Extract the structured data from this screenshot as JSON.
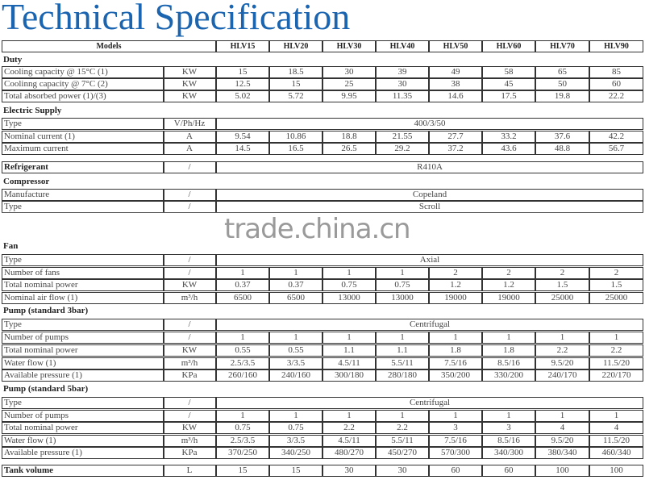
{
  "title": "Technical Specification",
  "watermark": "trade.china.cn",
  "header": {
    "label": "Models",
    "models": [
      "HLV15",
      "HLV20",
      "HLV30",
      "HLV40",
      "HLV50",
      "HLV60",
      "HLV70",
      "HLV90"
    ]
  },
  "sections": [
    {
      "name": "Duty",
      "rows": [
        {
          "label": "Cooling capacity @ 15°C (1)",
          "unit": "KW",
          "values": [
            "15",
            "18.5",
            "30",
            "39",
            "49",
            "58",
            "65",
            "85"
          ]
        },
        {
          "label": "Coolinng capacity @ 7°C (2)",
          "unit": "KW",
          "values": [
            "12.5",
            "15",
            "25",
            "30",
            "38",
            "45",
            "50",
            "60"
          ]
        },
        {
          "label": "Total absorbed power  (1)/(3)",
          "unit": "KW",
          "values": [
            "5.02",
            "5.72",
            "9.95",
            "11.35",
            "14.6",
            "17.5",
            "19.8",
            "22.2"
          ]
        }
      ]
    },
    {
      "name": "Electric Supply",
      "rows": [
        {
          "label": "Type",
          "unit": "V/Ph/Hz",
          "span": "400/3/50"
        },
        {
          "label": "Nominal current (1)",
          "unit": "A",
          "values": [
            "9.54",
            "10.86",
            "18.8",
            "21.55",
            "27.7",
            "33.2",
            "37.6",
            "42.2"
          ]
        },
        {
          "label": "Maximum current",
          "unit": "A",
          "values": [
            "14.5",
            "16.5",
            "26.5",
            "29.2",
            "37.2",
            "43.6",
            "48.8",
            "56.7"
          ]
        }
      ]
    },
    {
      "name": "",
      "rows": [
        {
          "label": "Refrigerant",
          "unit": "/",
          "span": "R410A",
          "bold": true
        }
      ]
    },
    {
      "name": "Compressor",
      "rows": [
        {
          "label": "Manufacture",
          "unit": "/",
          "span": "Copeland"
        },
        {
          "label": "Type",
          "unit": "/",
          "span": "Scroll"
        }
      ]
    },
    {
      "name": "Fan",
      "rows": [
        {
          "label": "Type",
          "unit": "/",
          "span": "Axial"
        },
        {
          "label": "Number of fans",
          "unit": "/",
          "values": [
            "1",
            "1",
            "1",
            "1",
            "2",
            "2",
            "2",
            "2"
          ]
        },
        {
          "label": "Total nominal power",
          "unit": "KW",
          "values": [
            "0.37",
            "0.37",
            "0.75",
            "0.75",
            "1.2",
            "1.2",
            "1.5",
            "1.5"
          ]
        },
        {
          "label": "Nominal air flow (1)",
          "unit": "m³/h",
          "values": [
            "6500",
            "6500",
            "13000",
            "13000",
            "19000",
            "19000",
            "25000",
            "25000"
          ]
        }
      ]
    },
    {
      "name": "Pump (standard 3bar)",
      "rows": [
        {
          "label": "Type",
          "unit": "/",
          "span": "Centrifugal"
        },
        {
          "label": "Number of pumps",
          "unit": "/",
          "values": [
            "1",
            "1",
            "1",
            "1",
            "1",
            "1",
            "1",
            "1"
          ]
        },
        {
          "label": "Total nominal power",
          "unit": "KW",
          "values": [
            "0.55",
            "0.55",
            "1.1",
            "1.1",
            "1.8",
            "1.8",
            "2.2",
            "2.2"
          ]
        },
        {
          "label": "Water flow (1)",
          "unit": "m³/h",
          "values": [
            "2.5/3.5",
            "3/3.5",
            "4.5/11",
            "5.5/11",
            "7.5/16",
            "8.5/16",
            "9.5/20",
            "11.5/20"
          ]
        },
        {
          "label": "Available pressure (1)",
          "unit": "KPa",
          "values": [
            "260/160",
            "240/160",
            "300/180",
            "280/180",
            "350/200",
            "330/200",
            "240/170",
            "220/170"
          ]
        }
      ]
    },
    {
      "name": "Pump (standard 5bar)",
      "rows": [
        {
          "label": "Type",
          "unit": "/",
          "span": "Centrifugal"
        },
        {
          "label": "Number of pumps",
          "unit": "/",
          "values": [
            "1",
            "1",
            "1",
            "1",
            "1",
            "1",
            "1",
            "1"
          ]
        },
        {
          "label": "Total nominal power",
          "unit": "KW",
          "values": [
            "0.75",
            "0.75",
            "2.2",
            "2.2",
            "3",
            "3",
            "4",
            "4"
          ]
        },
        {
          "label": "Water flow (1)",
          "unit": "m³/h",
          "values": [
            "2.5/3.5",
            "3/3.5",
            "4.5/11",
            "5.5/11",
            "7.5/16",
            "8.5/16",
            "9.5/20",
            "11.5/20"
          ]
        },
        {
          "label": "Available pressure (1)",
          "unit": "KPa",
          "values": [
            "370/250",
            "340/250",
            "480/270",
            "450/270",
            "570/300",
            "340/300",
            "380/340",
            "460/340"
          ]
        }
      ]
    },
    {
      "name": "",
      "rows": [
        {
          "label": "Tank volume",
          "unit": "L",
          "values": [
            "15",
            "15",
            "30",
            "30",
            "60",
            "60",
            "100",
            "100"
          ],
          "bold": true
        }
      ]
    }
  ]
}
